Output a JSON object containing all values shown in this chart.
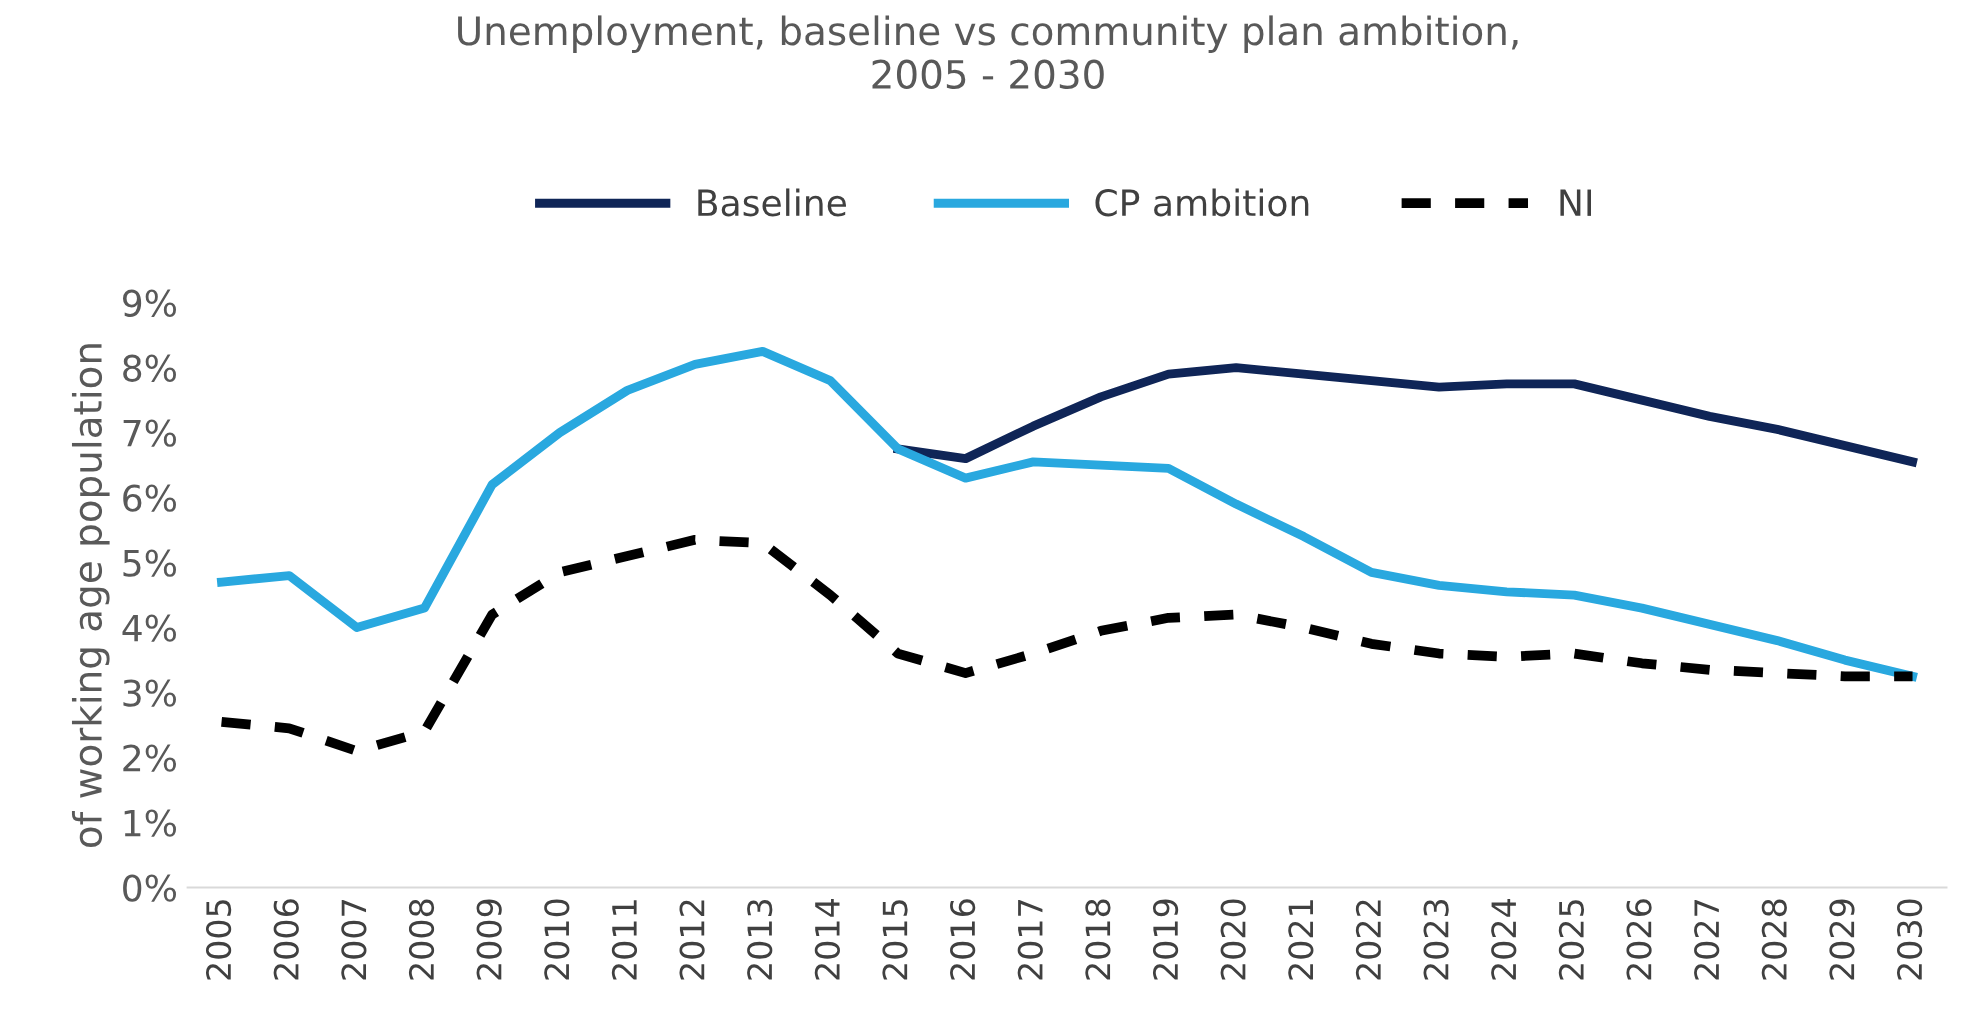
{
  "chart_data": {
    "type": "line",
    "title": "Unemployment, baseline vs community plan ambition,\n2005 - 2030",
    "ylabel": "of working age population",
    "categories": [
      "2005",
      "2006",
      "2007",
      "2008",
      "2009",
      "2010",
      "2011",
      "2012",
      "2013",
      "2014",
      "2015",
      "2016",
      "2017",
      "2018",
      "2019",
      "2020",
      "2021",
      "2022",
      "2023",
      "2024",
      "2025",
      "2026",
      "2027",
      "2028",
      "2029",
      "2030"
    ],
    "series": [
      {
        "name": "Baseline",
        "color": "#0f2557",
        "line_style": "solid",
        "values": [
          null,
          null,
          null,
          null,
          null,
          null,
          null,
          null,
          null,
          null,
          6.75,
          6.6,
          7.1,
          7.55,
          7.9,
          8.0,
          7.9,
          7.8,
          7.7,
          7.75,
          7.75,
          7.5,
          7.25,
          7.05,
          6.8,
          6.55
        ]
      },
      {
        "name": "CP ambition",
        "color": "#29a8df",
        "line_style": "solid",
        "values": [
          4.7,
          4.8,
          4.0,
          4.3,
          6.2,
          7.0,
          7.65,
          8.05,
          8.25,
          7.8,
          6.75,
          6.3,
          6.55,
          6.5,
          6.45,
          5.9,
          5.4,
          4.85,
          4.65,
          4.55,
          4.5,
          4.3,
          4.05,
          3.8,
          3.5,
          3.25
        ]
      },
      {
        "name": "NI",
        "color": "#000000",
        "line_style": "dashed",
        "values": [
          2.55,
          2.45,
          2.1,
          2.4,
          4.2,
          4.85,
          5.1,
          5.35,
          5.3,
          4.5,
          3.6,
          3.3,
          3.6,
          3.95,
          4.15,
          4.2,
          4.0,
          3.75,
          3.6,
          3.55,
          3.6,
          3.45,
          3.35,
          3.3,
          3.25,
          3.25
        ]
      }
    ],
    "ylim": [
      0,
      9
    ],
    "yticks": [
      {
        "value": 0,
        "label": "0%"
      },
      {
        "value": 1,
        "label": "1%"
      },
      {
        "value": 2,
        "label": "2%"
      },
      {
        "value": 3,
        "label": "3%"
      },
      {
        "value": 4,
        "label": "4%"
      },
      {
        "value": 5,
        "label": "5%"
      },
      {
        "value": 6,
        "label": "6%"
      },
      {
        "value": 7,
        "label": "7%"
      },
      {
        "value": 8,
        "label": "8%"
      },
      {
        "value": 9,
        "label": "9%"
      }
    ],
    "grid": false,
    "legend": "top",
    "marker": "none"
  }
}
